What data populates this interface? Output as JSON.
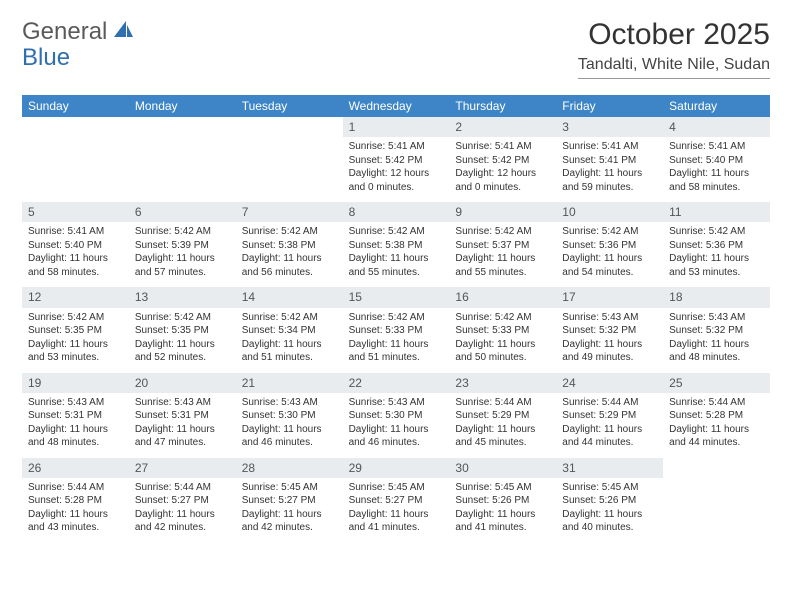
{
  "brand": {
    "text1": "General",
    "text2": "Blue"
  },
  "title": "October 2025",
  "location": "Tandalti, White Nile, Sudan",
  "weekdays": [
    "Sunday",
    "Monday",
    "Tuesday",
    "Wednesday",
    "Thursday",
    "Friday",
    "Saturday"
  ],
  "colors": {
    "header_bg": "#3d85c6",
    "header_text": "#ffffff",
    "daynum_bg": "#e8ecef",
    "text": "#333333",
    "logo_gray": "#5a5a5a",
    "logo_blue": "#2f6fb0"
  },
  "typography": {
    "title_fontsize": 30,
    "location_fontsize": 16,
    "weekday_fontsize": 12,
    "daynum_fontsize": 12,
    "detail_fontsize": 10
  },
  "layout": {
    "cols": 7,
    "rows": 5,
    "leading_blanks": 3
  },
  "days": [
    {
      "n": 1,
      "sunrise": "5:41 AM",
      "sunset": "5:42 PM",
      "daylight": "12 hours and 0 minutes."
    },
    {
      "n": 2,
      "sunrise": "5:41 AM",
      "sunset": "5:42 PM",
      "daylight": "12 hours and 0 minutes."
    },
    {
      "n": 3,
      "sunrise": "5:41 AM",
      "sunset": "5:41 PM",
      "daylight": "11 hours and 59 minutes."
    },
    {
      "n": 4,
      "sunrise": "5:41 AM",
      "sunset": "5:40 PM",
      "daylight": "11 hours and 58 minutes."
    },
    {
      "n": 5,
      "sunrise": "5:41 AM",
      "sunset": "5:40 PM",
      "daylight": "11 hours and 58 minutes."
    },
    {
      "n": 6,
      "sunrise": "5:42 AM",
      "sunset": "5:39 PM",
      "daylight": "11 hours and 57 minutes."
    },
    {
      "n": 7,
      "sunrise": "5:42 AM",
      "sunset": "5:38 PM",
      "daylight": "11 hours and 56 minutes."
    },
    {
      "n": 8,
      "sunrise": "5:42 AM",
      "sunset": "5:38 PM",
      "daylight": "11 hours and 55 minutes."
    },
    {
      "n": 9,
      "sunrise": "5:42 AM",
      "sunset": "5:37 PM",
      "daylight": "11 hours and 55 minutes."
    },
    {
      "n": 10,
      "sunrise": "5:42 AM",
      "sunset": "5:36 PM",
      "daylight": "11 hours and 54 minutes."
    },
    {
      "n": 11,
      "sunrise": "5:42 AM",
      "sunset": "5:36 PM",
      "daylight": "11 hours and 53 minutes."
    },
    {
      "n": 12,
      "sunrise": "5:42 AM",
      "sunset": "5:35 PM",
      "daylight": "11 hours and 53 minutes."
    },
    {
      "n": 13,
      "sunrise": "5:42 AM",
      "sunset": "5:35 PM",
      "daylight": "11 hours and 52 minutes."
    },
    {
      "n": 14,
      "sunrise": "5:42 AM",
      "sunset": "5:34 PM",
      "daylight": "11 hours and 51 minutes."
    },
    {
      "n": 15,
      "sunrise": "5:42 AM",
      "sunset": "5:33 PM",
      "daylight": "11 hours and 51 minutes."
    },
    {
      "n": 16,
      "sunrise": "5:42 AM",
      "sunset": "5:33 PM",
      "daylight": "11 hours and 50 minutes."
    },
    {
      "n": 17,
      "sunrise": "5:43 AM",
      "sunset": "5:32 PM",
      "daylight": "11 hours and 49 minutes."
    },
    {
      "n": 18,
      "sunrise": "5:43 AM",
      "sunset": "5:32 PM",
      "daylight": "11 hours and 48 minutes."
    },
    {
      "n": 19,
      "sunrise": "5:43 AM",
      "sunset": "5:31 PM",
      "daylight": "11 hours and 48 minutes."
    },
    {
      "n": 20,
      "sunrise": "5:43 AM",
      "sunset": "5:31 PM",
      "daylight": "11 hours and 47 minutes."
    },
    {
      "n": 21,
      "sunrise": "5:43 AM",
      "sunset": "5:30 PM",
      "daylight": "11 hours and 46 minutes."
    },
    {
      "n": 22,
      "sunrise": "5:43 AM",
      "sunset": "5:30 PM",
      "daylight": "11 hours and 46 minutes."
    },
    {
      "n": 23,
      "sunrise": "5:44 AM",
      "sunset": "5:29 PM",
      "daylight": "11 hours and 45 minutes."
    },
    {
      "n": 24,
      "sunrise": "5:44 AM",
      "sunset": "5:29 PM",
      "daylight": "11 hours and 44 minutes."
    },
    {
      "n": 25,
      "sunrise": "5:44 AM",
      "sunset": "5:28 PM",
      "daylight": "11 hours and 44 minutes."
    },
    {
      "n": 26,
      "sunrise": "5:44 AM",
      "sunset": "5:28 PM",
      "daylight": "11 hours and 43 minutes."
    },
    {
      "n": 27,
      "sunrise": "5:44 AM",
      "sunset": "5:27 PM",
      "daylight": "11 hours and 42 minutes."
    },
    {
      "n": 28,
      "sunrise": "5:45 AM",
      "sunset": "5:27 PM",
      "daylight": "11 hours and 42 minutes."
    },
    {
      "n": 29,
      "sunrise": "5:45 AM",
      "sunset": "5:27 PM",
      "daylight": "11 hours and 41 minutes."
    },
    {
      "n": 30,
      "sunrise": "5:45 AM",
      "sunset": "5:26 PM",
      "daylight": "11 hours and 41 minutes."
    },
    {
      "n": 31,
      "sunrise": "5:45 AM",
      "sunset": "5:26 PM",
      "daylight": "11 hours and 40 minutes."
    }
  ],
  "labels": {
    "sunrise": "Sunrise:",
    "sunset": "Sunset:",
    "daylight": "Daylight:"
  }
}
